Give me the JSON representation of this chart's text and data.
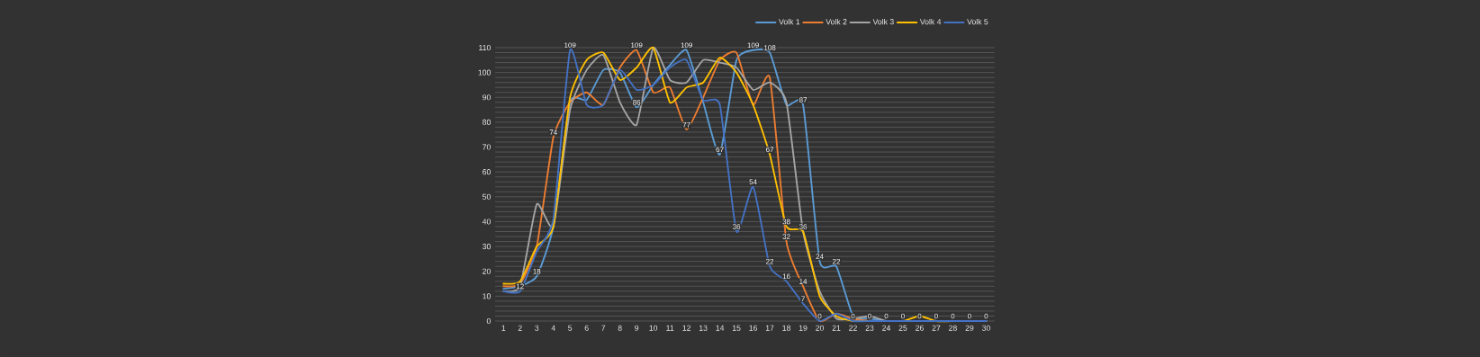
{
  "chart_data": {
    "type": "line",
    "categories": [
      "1",
      "2",
      "3",
      "4",
      "5",
      "6",
      "7",
      "8",
      "9",
      "10",
      "11",
      "12",
      "13",
      "14",
      "15",
      "16",
      "17",
      "18",
      "19",
      "20",
      "21",
      "22",
      "23",
      "24",
      "25",
      "26",
      "27",
      "28",
      "29",
      "30"
    ],
    "series": [
      {
        "name": "Volk 1",
        "color": "#5b9bd5",
        "values": [
          13,
          14,
          18,
          38,
          88,
          89,
          101,
          100,
          86,
          95,
          103,
          109,
          88,
          67,
          105,
          109,
          108,
          87,
          87,
          24,
          22,
          2,
          1,
          0,
          0,
          0,
          0,
          0,
          0,
          0
        ],
        "value_labels": [
          null,
          null,
          "18",
          null,
          null,
          null,
          null,
          null,
          "86",
          null,
          null,
          "109",
          null,
          "67",
          null,
          "109",
          "108",
          null,
          "87",
          "24",
          "22",
          null,
          null,
          null,
          null,
          null,
          null,
          null,
          null,
          null
        ]
      },
      {
        "name": "Volk 2",
        "color": "#ed7d31",
        "values": [
          14,
          15,
          30,
          74,
          88,
          92,
          87,
          102,
          109,
          92,
          94,
          77,
          90,
          105,
          108,
          87,
          98,
          32,
          14,
          0,
          3,
          1,
          0,
          0,
          0,
          0,
          0,
          0,
          null,
          null
        ],
        "value_labels": [
          null,
          null,
          null,
          "74",
          null,
          null,
          null,
          null,
          "109",
          null,
          null,
          "77",
          null,
          null,
          null,
          null,
          null,
          "32",
          "14",
          null,
          null,
          null,
          null,
          null,
          null,
          null,
          null,
          null,
          null,
          null
        ]
      },
      {
        "name": "Volk 3",
        "color": "#a5a5a5",
        "values": [
          12,
          14,
          47,
          38,
          85,
          101,
          107,
          88,
          79,
          110,
          97,
          96,
          105,
          104,
          102,
          93,
          96,
          88,
          36,
          12,
          1,
          1,
          2,
          0,
          0,
          0,
          0,
          0,
          0,
          0
        ]
      },
      {
        "name": "Volk 4",
        "color": "#ffc000",
        "values": [
          15,
          16,
          30,
          38,
          90,
          105,
          108,
          97,
          102,
          110,
          88,
          94,
          96,
          106,
          100,
          87,
          67,
          38,
          36,
          10,
          2,
          0,
          0,
          0,
          0,
          2,
          0,
          0,
          null,
          null
        ],
        "value_labels": [
          null,
          null,
          null,
          null,
          null,
          null,
          null,
          null,
          null,
          null,
          null,
          null,
          null,
          null,
          null,
          null,
          "67",
          "38",
          "36",
          null,
          null,
          null,
          null,
          null,
          null,
          null,
          null,
          null,
          null,
          null
        ]
      },
      {
        "name": "Volk 5",
        "color": "#4472c4",
        "values": [
          12,
          12,
          28,
          41,
          109,
          87,
          87,
          101,
          93,
          95,
          102,
          105,
          89,
          87,
          36,
          54,
          22,
          16,
          7,
          0,
          3,
          0,
          0,
          0,
          0,
          0,
          0,
          0,
          0,
          0
        ],
        "value_labels": [
          null,
          "12",
          null,
          null,
          "109",
          null,
          null,
          null,
          null,
          null,
          null,
          null,
          null,
          null,
          "36",
          "54",
          "22",
          "16",
          "7",
          "0",
          null,
          "0",
          "0",
          "0",
          "0",
          "0",
          "0",
          "0",
          "0",
          "0"
        ]
      }
    ],
    "ylim": [
      0,
      110
    ],
    "yticks": [
      0,
      {
        "value": 2,
        "label": null
      },
      {
        "value": 4,
        "label": null
      },
      {
        "value": 6,
        "label": null
      },
      {
        "value": 8,
        "label": null
      },
      10,
      {
        "value": 12,
        "label": null
      },
      {
        "value": 14,
        "label": null
      },
      {
        "value": 16,
        "label": null
      },
      {
        "value": 18,
        "label": null
      },
      20,
      {
        "value": 22,
        "label": null
      },
      {
        "value": 24,
        "label": null
      },
      {
        "value": 26,
        "label": null
      },
      {
        "value": 28,
        "label": null
      },
      30,
      {
        "value": 32,
        "label": null
      },
      {
        "value": 34,
        "label": null
      },
      {
        "value": 36,
        "label": null
      },
      {
        "value": 38,
        "label": null
      },
      40,
      {
        "value": 42,
        "label": null
      },
      {
        "value": 44,
        "label": null
      },
      {
        "value": 46,
        "label": null
      },
      {
        "value": 48,
        "label": null
      },
      50,
      {
        "value": 52,
        "label": null
      },
      {
        "value": 54,
        "label": null
      },
      {
        "value": 56,
        "label": null
      },
      {
        "value": 58,
        "label": null
      },
      60,
      {
        "value": 62,
        "label": null
      },
      {
        "value": 64,
        "label": null
      },
      {
        "value": 66,
        "label": null
      },
      {
        "value": 68,
        "label": null
      },
      70,
      {
        "value": 72,
        "label": null
      },
      {
        "value": 74,
        "label": null
      },
      {
        "value": 76,
        "label": null
      },
      {
        "value": 78,
        "label": null
      },
      80,
      {
        "value": 82,
        "label": null
      },
      {
        "value": 84,
        "label": null
      },
      {
        "value": 86,
        "label": null
      },
      {
        "value": 88,
        "label": null
      },
      90,
      {
        "value": 92,
        "label": null
      },
      {
        "value": 94,
        "label": null
      },
      {
        "value": 96,
        "label": null
      },
      {
        "value": 98,
        "label": null
      },
      100,
      {
        "value": 102,
        "label": null
      },
      {
        "value": 104,
        "label": null
      },
      {
        "value": 106,
        "label": null
      },
      {
        "value": 108,
        "label": null
      },
      110
    ],
    "grid": "y",
    "legend": "top right",
    "marker": "none",
    "line_style": "solid"
  }
}
